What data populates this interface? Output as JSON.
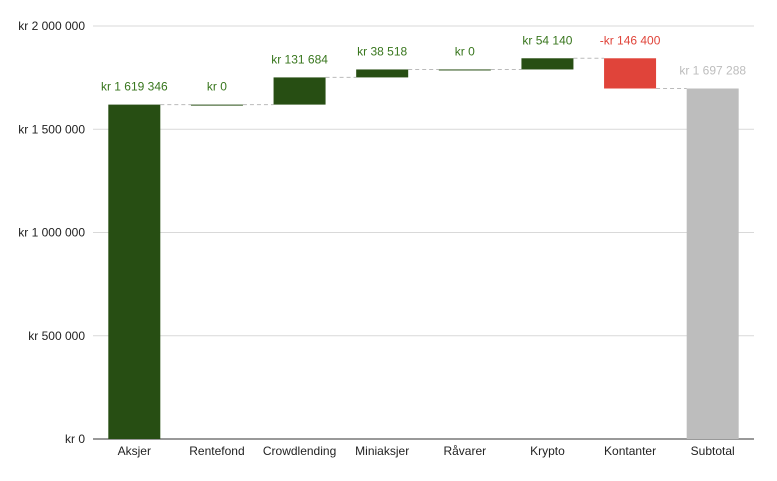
{
  "chart_data": {
    "type": "waterfall",
    "categories": [
      "Aksjer",
      "Rentefond",
      "Crowdlending",
      "Miniaksjer",
      "Råvarer",
      "Krypto",
      "Kontanter",
      "Subtotal"
    ],
    "values": [
      1619346,
      0,
      131684,
      38518,
      0,
      54140,
      -146400,
      1697288
    ],
    "kinds": [
      "increase",
      "increase",
      "increase",
      "increase",
      "increase",
      "increase",
      "decrease",
      "total"
    ],
    "data_labels": [
      "kr 1 619 346",
      "kr   0",
      "kr  131 684",
      "kr  38 518",
      "kr   0",
      "kr  54 140",
      "-kr  146 400",
      "kr 1 697 288"
    ],
    "y_tick_values": [
      0,
      500000,
      1000000,
      1500000,
      2000000
    ],
    "y_tick_labels": [
      "kr   0",
      "kr  500 000",
      "kr 1 000 000",
      "kr 1 500 000",
      "kr 2 000 000"
    ],
    "ylim": [
      0,
      2000000
    ],
    "grid": true,
    "legend": "none",
    "colors": {
      "increase": "#274e13",
      "decrease": "#e0443a",
      "total": "#bdbdbd",
      "increase_label": "#38761d",
      "decrease_label": "#e0443a",
      "total_label": "#bdbdbd"
    }
  }
}
